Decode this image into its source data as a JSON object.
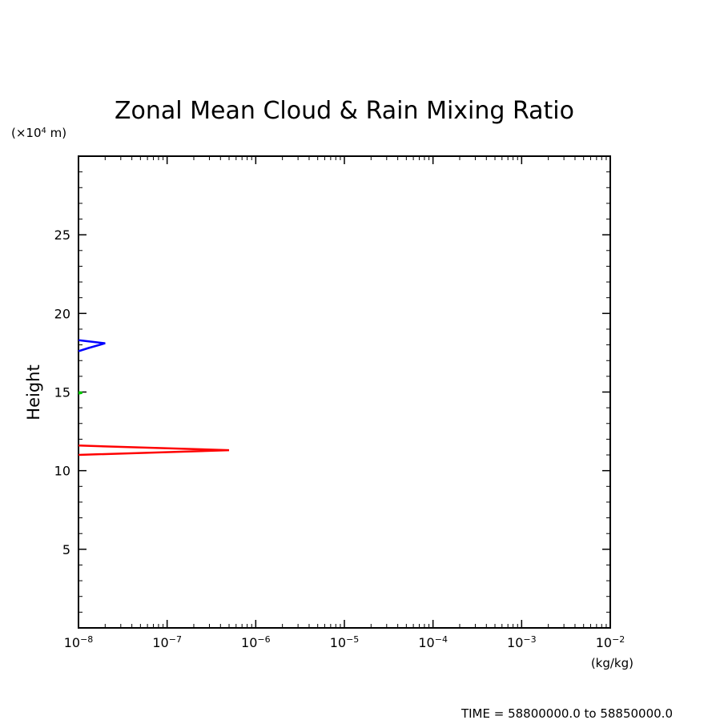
{
  "chart_data": {
    "type": "line",
    "title": "Zonal Mean Cloud & Rain Mixing Ratio",
    "xlabel": "(kg/kg)",
    "ylabel": "Height",
    "y_unit": "(×10⁴ m)",
    "x_scale": "log",
    "xlim": [
      1e-08,
      0.01
    ],
    "ylim": [
      0,
      30
    ],
    "x_ticks": [
      {
        "value": 1e-08,
        "base": "10",
        "exp": "−8"
      },
      {
        "value": 1e-07,
        "base": "10",
        "exp": "−7"
      },
      {
        "value": 1e-06,
        "base": "10",
        "exp": "−6"
      },
      {
        "value": 1e-05,
        "base": "10",
        "exp": "−5"
      },
      {
        "value": 0.0001,
        "base": "10",
        "exp": "−4"
      },
      {
        "value": 0.001,
        "base": "10",
        "exp": "−3"
      },
      {
        "value": 0.01,
        "base": "10",
        "exp": "−2"
      }
    ],
    "y_ticks": [
      5,
      10,
      15,
      20,
      25
    ],
    "grid": false,
    "series": [
      {
        "color": "#ff0000",
        "points": [
          [
            1e-08,
            11.0
          ],
          [
            5e-07,
            11.3
          ],
          [
            1e-08,
            11.6
          ]
        ]
      },
      {
        "color": "#00cc00",
        "points": [
          [
            1e-08,
            14.9
          ],
          [
            1.1e-08,
            14.95
          ],
          [
            1e-08,
            15.0
          ]
        ]
      },
      {
        "color": "#0000ff",
        "points": [
          [
            1e-08,
            17.6
          ],
          [
            1.3e-08,
            17.8
          ],
          [
            2e-08,
            18.1
          ],
          [
            1e-08,
            18.3
          ]
        ]
      }
    ]
  },
  "footer": {
    "time_text": "TIME = 58800000.0 to 58850000.0"
  }
}
